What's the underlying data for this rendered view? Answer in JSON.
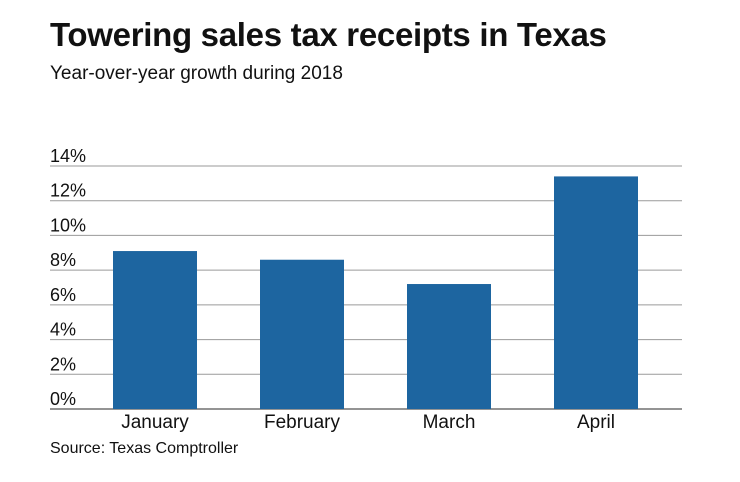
{
  "chart_data": {
    "type": "bar",
    "title": "Towering sales tax receipts in Texas",
    "subtitle": "Year-over-year growth during 2018",
    "source": "Source: Texas Comptroller",
    "categories": [
      "January",
      "February",
      "March",
      "April"
    ],
    "values": [
      9.1,
      8.6,
      7.2,
      13.4
    ],
    "xlabel": "",
    "ylabel": "",
    "ylim": [
      0,
      14
    ],
    "yticks": [
      0,
      2,
      4,
      6,
      8,
      10,
      12,
      14
    ],
    "ytick_labels": [
      "0%",
      "2%",
      "4%",
      "6%",
      "8%",
      "10%",
      "12%",
      "14%"
    ],
    "grid": true,
    "legend": "none",
    "bar_color": "#1d65a0"
  }
}
